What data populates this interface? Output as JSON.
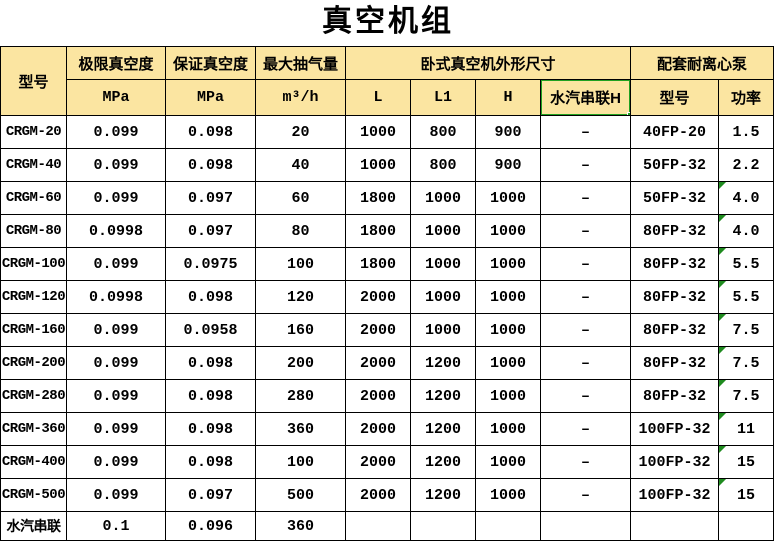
{
  "title": "真空机组",
  "colors": {
    "header_background": "#fbe5a1",
    "selection_green": "#21a121",
    "indicator_triangle_green": "#1f8b1f",
    "grid_border": "#000000"
  },
  "table": {
    "header": {
      "model": "型号",
      "ultimate_vacuum": "极限真空度",
      "guaranteed_vacuum": "保证真空度",
      "max_pumping": "最大抽气量",
      "dims_group": "卧式真空机外形尺寸",
      "pump_group": "配套耐离心泵",
      "unit_mpa1": "MPa",
      "unit_mpa2": "MPa",
      "unit_flow": "m³/h",
      "col_L": "L",
      "col_L1": "L1",
      "col_H": "H",
      "col_steam": "水汽串联H",
      "pump_model": "型号",
      "pump_power": "功率"
    },
    "selected_cell_label": "水汽串联H",
    "rows": [
      {
        "model": "CRGM-20",
        "ultimate": "0.099",
        "guaranteed": "0.098",
        "flow": "20",
        "L": "1000",
        "L1": "800",
        "H": "900",
        "steam": "–",
        "pump_model": "40FP-20",
        "power": "1.5",
        "indicator": false
      },
      {
        "model": "CRGM-40",
        "ultimate": "0.099",
        "guaranteed": "0.098",
        "flow": "40",
        "L": "1000",
        "L1": "800",
        "H": "900",
        "steam": "–",
        "pump_model": "50FP-32",
        "power": "2.2",
        "indicator": false
      },
      {
        "model": "CRGM-60",
        "ultimate": "0.099",
        "guaranteed": "0.097",
        "flow": "60",
        "L": "1800",
        "L1": "1000",
        "H": "1000",
        "steam": "–",
        "pump_model": "50FP-32",
        "power": "4.0",
        "indicator": true
      },
      {
        "model": "CRGM-80",
        "ultimate": "0.0998",
        "guaranteed": "0.097",
        "flow": "80",
        "L": "1800",
        "L1": "1000",
        "H": "1000",
        "steam": "–",
        "pump_model": "80FP-32",
        "power": "4.0",
        "indicator": true
      },
      {
        "model": "CRGM-100",
        "ultimate": "0.099",
        "guaranteed": "0.0975",
        "flow": "100",
        "L": "1800",
        "L1": "1000",
        "H": "1000",
        "steam": "–",
        "pump_model": "80FP-32",
        "power": "5.5",
        "indicator": true
      },
      {
        "model": "CRGM-120",
        "ultimate": "0.0998",
        "guaranteed": "0.098",
        "flow": "120",
        "L": "2000",
        "L1": "1000",
        "H": "1000",
        "steam": "–",
        "pump_model": "80FP-32",
        "power": "5.5",
        "indicator": true
      },
      {
        "model": "CRGM-160",
        "ultimate": "0.099",
        "guaranteed": "0.0958",
        "flow": "160",
        "L": "2000",
        "L1": "1000",
        "H": "1000",
        "steam": "–",
        "pump_model": "80FP-32",
        "power": "7.5",
        "indicator": true
      },
      {
        "model": "CRGM-200",
        "ultimate": "0.099",
        "guaranteed": "0.098",
        "flow": "200",
        "L": "2000",
        "L1": "1200",
        "H": "1000",
        "steam": "–",
        "pump_model": "80FP-32",
        "power": "7.5",
        "indicator": true
      },
      {
        "model": "CRGM-280",
        "ultimate": "0.099",
        "guaranteed": "0.098",
        "flow": "280",
        "L": "2000",
        "L1": "1200",
        "H": "1000",
        "steam": "–",
        "pump_model": "80FP-32",
        "power": "7.5",
        "indicator": true
      },
      {
        "model": "CRGM-360",
        "ultimate": "0.099",
        "guaranteed": "0.098",
        "flow": "360",
        "L": "2000",
        "L1": "1200",
        "H": "1000",
        "steam": "–",
        "pump_model": "100FP-32",
        "power": "11",
        "indicator": true
      },
      {
        "model": "CRGM-400",
        "ultimate": "0.099",
        "guaranteed": "0.098",
        "flow": "100",
        "L": "2000",
        "L1": "1200",
        "H": "1000",
        "steam": "–",
        "pump_model": "100FP-32",
        "power": "15",
        "indicator": true
      },
      {
        "model": "CRGM-500",
        "ultimate": "0.099",
        "guaranteed": "0.097",
        "flow": "500",
        "L": "2000",
        "L1": "1200",
        "H": "1000",
        "steam": "–",
        "pump_model": "100FP-32",
        "power": "15",
        "indicator": true
      },
      {
        "model": "水汽串联",
        "ultimate": "0.1",
        "guaranteed": "0.096",
        "flow": "360",
        "L": "",
        "L1": "",
        "H": "",
        "steam": "",
        "pump_model": "",
        "power": "",
        "indicator": false
      }
    ]
  }
}
